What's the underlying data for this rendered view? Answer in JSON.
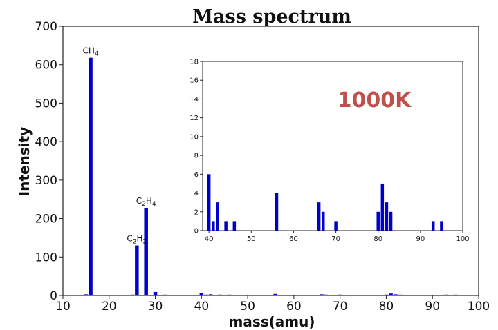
{
  "chart_data": {
    "type": "bar",
    "title": "Mass spectrum",
    "xlabel": "mass(amu)",
    "ylabel": "Intensity",
    "xlim": [
      10,
      100
    ],
    "ylim": [
      0,
      700
    ],
    "xticks": [
      10,
      20,
      30,
      40,
      50,
      60,
      70,
      80,
      90,
      100
    ],
    "yticks": [
      0,
      100,
      200,
      300,
      400,
      500,
      600,
      700
    ],
    "bar_color": "#0000cc",
    "series": [
      {
        "x": [
          15,
          16,
          25,
          26,
          28,
          30,
          32,
          40,
          41,
          42,
          44,
          46,
          56,
          66,
          67,
          70,
          80,
          81,
          82,
          83,
          93,
          95
        ],
        "values": [
          3,
          618,
          2,
          130,
          228,
          9,
          1,
          6,
          1,
          3,
          1,
          1,
          4,
          3,
          2,
          1,
          2,
          5,
          3,
          2,
          1,
          1
        ]
      }
    ],
    "annotations": [
      {
        "x": 16,
        "y": 618,
        "label_main": "CH",
        "label_sub": "4"
      },
      {
        "x": 26,
        "y": 130,
        "label_main": "C",
        "label_sub": "2",
        "label_main2": "H",
        "label_sub2": "2"
      },
      {
        "x": 28,
        "y": 228,
        "label_main": "C",
        "label_sub": "2",
        "label_main2": "H",
        "label_sub2": "4"
      }
    ],
    "inset": {
      "type": "bar",
      "xlim": [
        38.5,
        100
      ],
      "ylim": [
        0,
        18
      ],
      "xticks": [
        40,
        50,
        60,
        70,
        80,
        90,
        100
      ],
      "yticks": [
        0,
        2,
        4,
        6,
        8,
        10,
        12,
        14,
        16,
        18
      ],
      "x": [
        40,
        41,
        42,
        44,
        46,
        56,
        66,
        67,
        70,
        80,
        81,
        82,
        83,
        93,
        95
      ],
      "values": [
        6,
        1,
        3,
        1,
        1,
        4,
        3,
        2,
        1,
        2,
        5,
        3,
        2,
        1,
        1
      ],
      "text_label": "1000K",
      "text_color": "#c0504d"
    }
  }
}
